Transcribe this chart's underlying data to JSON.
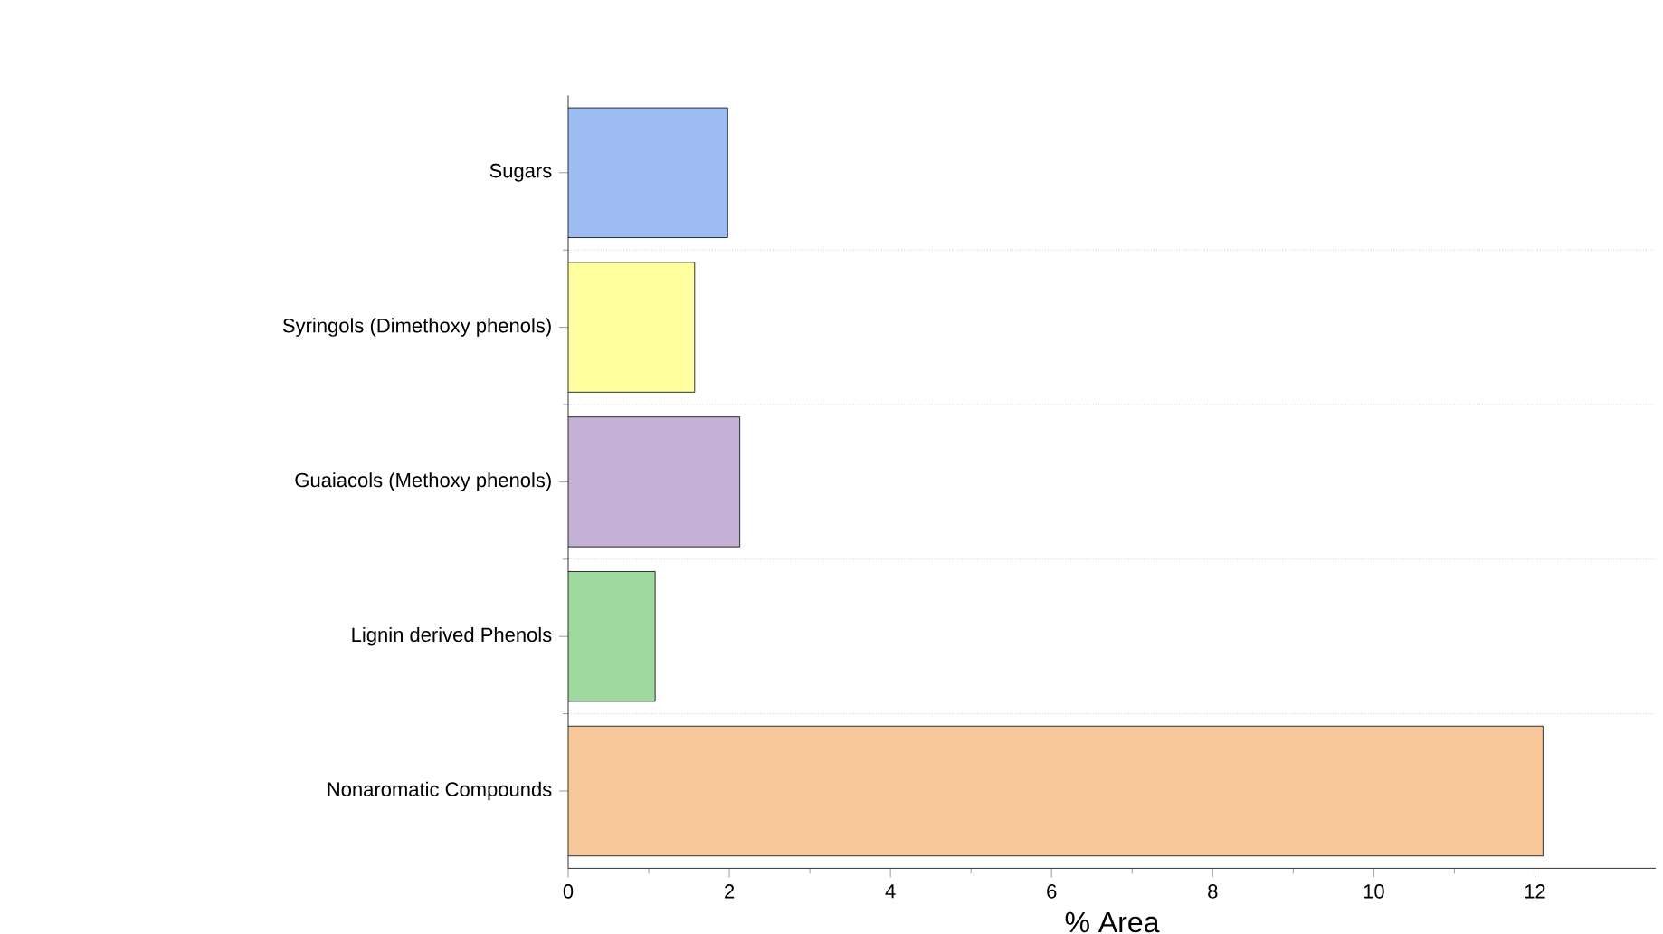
{
  "chart_data": {
    "type": "bar",
    "orientation": "horizontal",
    "xlabel": "% Area",
    "categories": [
      "Sugars",
      "Syringols (Dimethoxy phenols)",
      "Guaiacols (Methoxy phenols)",
      "Lignin derived Phenols",
      "Nonaromatic Compounds"
    ],
    "values": [
      1.98,
      1.57,
      2.13,
      1.08,
      12.1
    ],
    "colors": [
      "#9dbcf2",
      "#ffff9f",
      "#c3b1d8",
      "#a0d9a0",
      "#f9c89a"
    ],
    "xlim": [
      0,
      13.5
    ],
    "xticks": [
      0,
      2,
      4,
      6,
      8,
      10,
      12
    ],
    "grid": "y"
  }
}
